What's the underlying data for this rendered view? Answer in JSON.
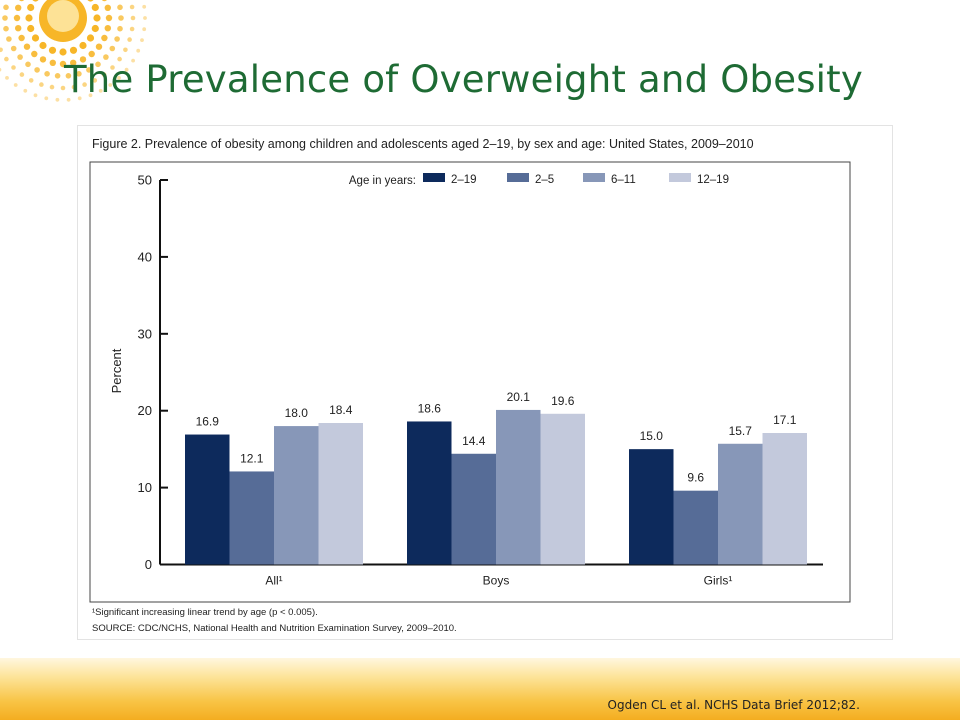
{
  "slide": {
    "title": "The Prevalence of Overweight and Obesity",
    "citation": "Ogden CL et al. NCHS Data Brief 2012;82."
  },
  "colors": {
    "title": "#1e6b34",
    "sun": "#f7b21c",
    "series": [
      "#0d2a5c",
      "#566c97",
      "#8797b8",
      "#c3c9dc"
    ]
  },
  "chart_data": {
    "type": "bar",
    "title": "Figure 2. Prevalence of obesity among children and adolescents aged 2–19, by sex and age: United States, 2009–2010",
    "ylabel": "Percent",
    "xlabel": "",
    "ylim": [
      0,
      50
    ],
    "yticks": [
      "0",
      "10",
      "20",
      "30",
      "40",
      "50"
    ],
    "grid": false,
    "legend_title": "Age in years:",
    "legend_position": "top-right",
    "categories": [
      "All¹",
      "Boys",
      "Girls¹"
    ],
    "series": [
      {
        "name": "2–19",
        "values": [
          16.9,
          18.6,
          15.0
        ],
        "labels": [
          "16.9",
          "18.6",
          "15.0"
        ]
      },
      {
        "name": "2–5",
        "values": [
          12.1,
          14.4,
          9.6
        ],
        "labels": [
          "12.1",
          "14.4",
          "9.6"
        ]
      },
      {
        "name": "6–11",
        "values": [
          18.0,
          20.1,
          15.7
        ],
        "labels": [
          "18.0",
          "20.1",
          "15.7"
        ]
      },
      {
        "name": "12–19",
        "values": [
          18.4,
          19.6,
          17.1
        ],
        "labels": [
          "18.4",
          "19.6",
          "17.1"
        ]
      }
    ],
    "footnote": "¹Significant increasing linear trend by age (p < 0.005).",
    "source": "SOURCE: CDC/NCHS, National Health and Nutrition Examination Survey, 2009–2010."
  }
}
